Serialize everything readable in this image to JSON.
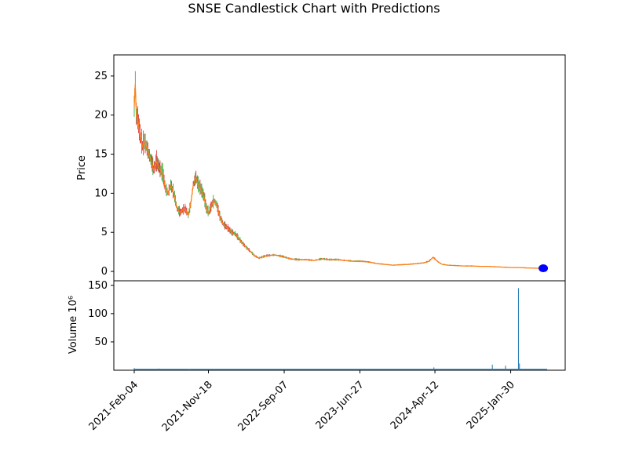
{
  "chart_data": {
    "type": "candlestick",
    "title": "SNSE Candlestick Chart with Predictions",
    "price_panel": {
      "ylabel": "Price",
      "yticks": [
        0,
        5,
        10,
        15,
        20,
        25
      ],
      "ylim": [
        -1.2,
        27.7
      ],
      "colors": {
        "up": "#2ca02c",
        "down": "#d62728",
        "mid": "#ff7f0e",
        "prediction": "#0000ff"
      },
      "close_series": {
        "dates": [
          "2021-02-04",
          "2021-02-08",
          "2021-02-12",
          "2021-02-18",
          "2021-02-24",
          "2021-03-01",
          "2021-03-08",
          "2021-03-15",
          "2021-03-22",
          "2021-04-01",
          "2021-04-12",
          "2021-04-20",
          "2021-05-01",
          "2021-05-15",
          "2021-05-25",
          "2021-06-05",
          "2021-06-15",
          "2021-06-25",
          "2021-07-01",
          "2021-07-10",
          "2021-07-20",
          "2021-08-01",
          "2021-08-10",
          "2021-08-20",
          "2021-09-01",
          "2021-09-10",
          "2021-09-20",
          "2021-10-01",
          "2021-10-10",
          "2021-10-20",
          "2021-11-01",
          "2021-11-10",
          "2021-11-20",
          "2021-12-01",
          "2021-12-10",
          "2021-12-20",
          "2022-01-01",
          "2022-01-15",
          "2022-02-01",
          "2022-02-15",
          "2022-03-01",
          "2022-03-15",
          "2022-04-01",
          "2022-04-15",
          "2022-05-01",
          "2022-05-15",
          "2022-06-01",
          "2022-07-01",
          "2022-08-01",
          "2022-09-01",
          "2022-10-01",
          "2022-11-01",
          "2022-12-01",
          "2023-01-01",
          "2023-02-01",
          "2023-03-01",
          "2023-04-01",
          "2023-05-01",
          "2023-06-01",
          "2023-07-01",
          "2023-08-01",
          "2023-09-01",
          "2023-10-01",
          "2023-11-01",
          "2023-12-01",
          "2024-01-01",
          "2024-02-01",
          "2024-03-01",
          "2024-03-20",
          "2024-04-05",
          "2024-04-15",
          "2024-04-25",
          "2024-05-10",
          "2024-06-01",
          "2024-07-01",
          "2024-08-01",
          "2024-09-01",
          "2024-10-01",
          "2024-11-01",
          "2024-12-01",
          "2025-01-01",
          "2025-02-01",
          "2025-03-01",
          "2025-04-01",
          "2025-05-01",
          "2025-06-01"
        ],
        "values": [
          21.0,
          24.0,
          20.0,
          19.5,
          18.0,
          17.0,
          16.0,
          16.5,
          16.0,
          15.0,
          14.0,
          13.0,
          14.0,
          13.0,
          12.5,
          10.5,
          10.0,
          11.0,
          10.5,
          9.5,
          8.0,
          7.5,
          7.8,
          8.0,
          7.2,
          8.5,
          11.0,
          12.0,
          11.0,
          10.5,
          9.5,
          8.0,
          7.5,
          8.5,
          9.0,
          8.5,
          7.0,
          6.0,
          5.5,
          5.0,
          4.8,
          4.2,
          3.5,
          3.0,
          2.5,
          2.0,
          1.7,
          2.0,
          2.1,
          1.9,
          1.6,
          1.5,
          1.5,
          1.4,
          1.6,
          1.5,
          1.5,
          1.4,
          1.3,
          1.3,
          1.2,
          1.0,
          0.9,
          0.8,
          0.85,
          0.9,
          1.0,
          1.1,
          1.3,
          1.8,
          1.5,
          1.2,
          0.9,
          0.8,
          0.75,
          0.7,
          0.7,
          0.65,
          0.65,
          0.6,
          0.55,
          0.5,
          0.5,
          0.45,
          0.42,
          0.4
        ]
      },
      "prediction": {
        "date": "2025-06-05",
        "value": 0.4
      }
    },
    "volume_panel": {
      "ylabel": "Volume  10⁶",
      "unit_exponent": "6",
      "yticks": [
        50,
        100,
        150
      ],
      "ylim": [
        0,
        158
      ],
      "bars": [
        {
          "date": "2021-02-04",
          "value": 4
        },
        {
          "date": "2021-05-10",
          "value": 3
        },
        {
          "date": "2021-09-05",
          "value": 2
        },
        {
          "date": "2024-04-08",
          "value": 5
        },
        {
          "date": "2024-11-20",
          "value": 10
        },
        {
          "date": "2025-01-10",
          "value": 8
        },
        {
          "date": "2025-03-01",
          "value": 145
        },
        {
          "date": "2025-03-05",
          "value": 12
        }
      ]
    },
    "xaxis": {
      "start": "2021-02-04",
      "end": "2025-06-20",
      "ticks": [
        "2021-Feb-04",
        "2021-Nov-18",
        "2022-Sep-07",
        "2023-Jun-27",
        "2024-Apr-12",
        "2025-Jan-30"
      ],
      "tick_dates": [
        "2021-02-04",
        "2021-11-18",
        "2022-09-07",
        "2023-06-27",
        "2024-04-12",
        "2025-01-30"
      ]
    }
  }
}
